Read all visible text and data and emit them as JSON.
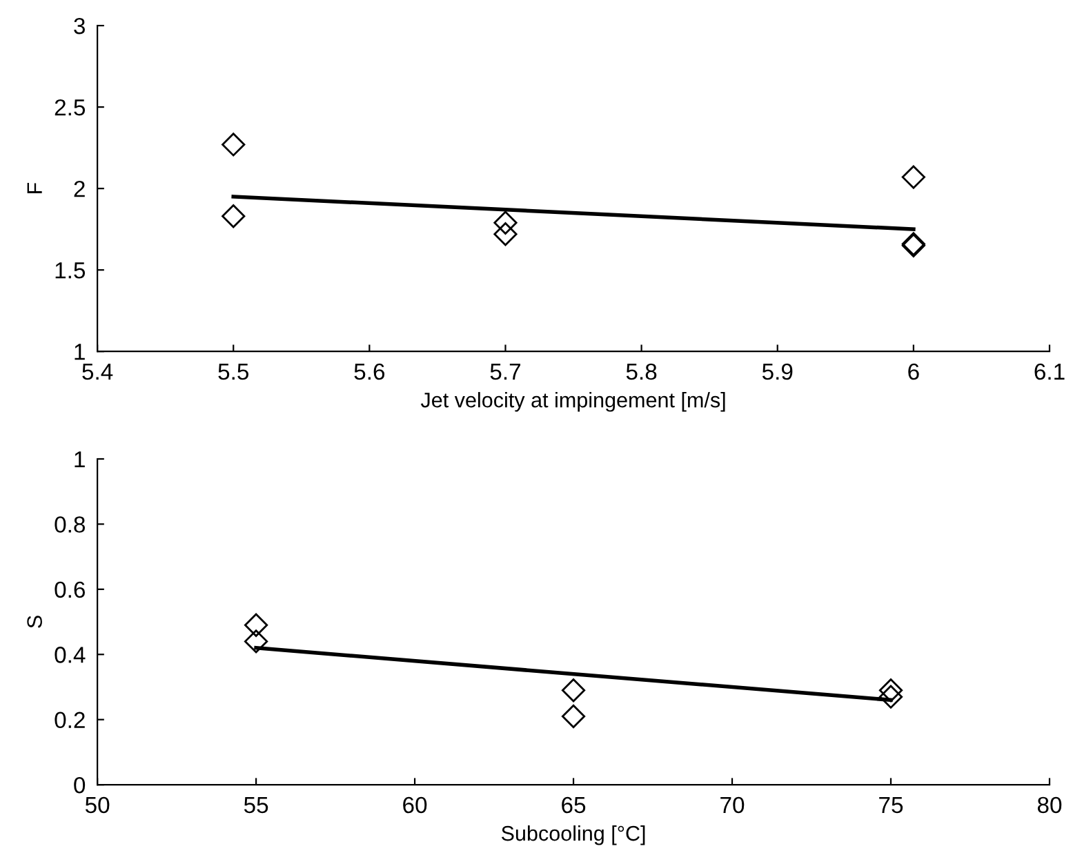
{
  "chart_data": [
    {
      "type": "scatter",
      "xlabel": "Jet velocity at impingement [m/s]",
      "ylabel": "F",
      "xlim": [
        5.4,
        6.1
      ],
      "xticks": [
        5.4,
        5.5,
        5.6,
        5.7,
        5.8,
        5.9,
        6,
        6.1
      ],
      "ylim": [
        1,
        3
      ],
      "yticks": [
        1,
        1.5,
        2,
        2.5,
        3
      ],
      "grid": false,
      "legend": false,
      "series": [
        {
          "marker": "diamond",
          "color": "#000000",
          "x": [
            5.5,
            5.5,
            5.7,
            5.7,
            6,
            6,
            6
          ],
          "values": [
            2.27,
            1.83,
            1.79,
            1.72,
            2.07,
            1.66,
            1.65
          ]
        },
        {
          "type": "line",
          "color": "#000000",
          "x": [
            5.5,
            6
          ],
          "values": [
            1.95,
            1.75
          ]
        }
      ]
    },
    {
      "type": "scatter",
      "xlabel": "Subcooling [°C]",
      "ylabel": "S",
      "xlim": [
        50,
        80
      ],
      "xticks": [
        50,
        55,
        60,
        65,
        70,
        75,
        80
      ],
      "ylim": [
        0,
        1
      ],
      "yticks": [
        0,
        0.2,
        0.4,
        0.6,
        0.8,
        1
      ],
      "grid": false,
      "legend": false,
      "series": [
        {
          "marker": "diamond",
          "color": "#000000",
          "x": [
            55,
            55,
            65,
            65,
            75,
            75
          ],
          "values": [
            0.49,
            0.44,
            0.29,
            0.21,
            0.29,
            0.27
          ]
        },
        {
          "type": "line",
          "color": "#000000",
          "x": [
            55,
            75
          ],
          "values": [
            0.42,
            0.26
          ]
        }
      ]
    }
  ]
}
